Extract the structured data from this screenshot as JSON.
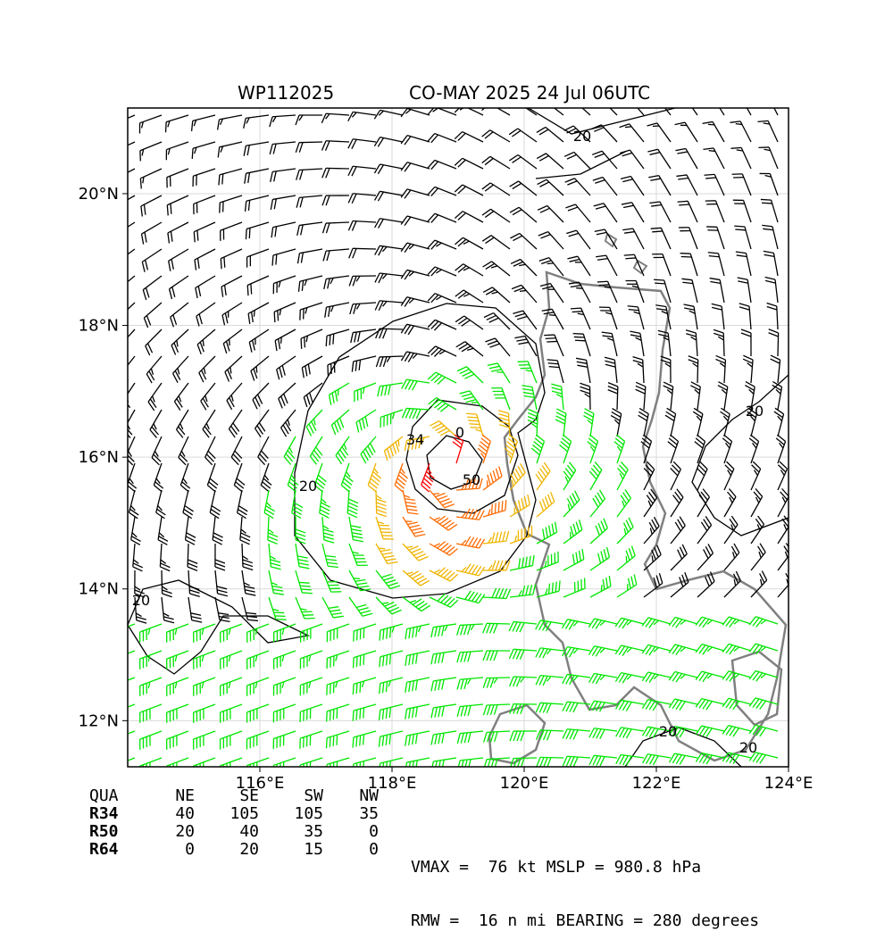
{
  "header": {
    "storm_id": "WP112025",
    "title": "CO-MAY 2025 24 Jul 06UTC"
  },
  "map": {
    "lon_min": 114.0,
    "lon_max": 124.0,
    "lat_min": 11.3,
    "lat_max": 21.3,
    "storm_center": {
      "lon": 118.8,
      "lat": 15.9
    },
    "lon_labels": [
      "116°E",
      "118°E",
      "120°E",
      "122°E",
      "124°E"
    ],
    "lat_labels": [
      "12°N",
      "14°N",
      "16°N",
      "18°N",
      "20°N"
    ],
    "contour_labels": [
      "20",
      "20",
      "20",
      "20",
      "20",
      "20",
      "34",
      "50",
      "0"
    ],
    "colors": {
      "under_34": "#000000",
      "gale_34": "#00e600",
      "storm_50": "#f0b400",
      "hurricane_64": "#ff6a00",
      "core": "#ff0000",
      "coastline": "#808080",
      "grid": "#d9d9d9"
    }
  },
  "wind_radii": {
    "headers": [
      "QUA",
      "NE",
      "SE",
      "SW",
      "NW"
    ],
    "rows": [
      {
        "label": "R34",
        "values": [
          "40",
          "105",
          "105",
          "35"
        ]
      },
      {
        "label": "R50",
        "values": [
          "20",
          "40",
          "35",
          "0"
        ]
      },
      {
        "label": "R64",
        "values": [
          "0",
          "20",
          "15",
          "0"
        ]
      }
    ]
  },
  "stats": {
    "line1": "VMAX =  76 kt MSLP = 980.8 hPa",
    "line2": "RMW =  16 n mi BEARING = 280 degrees"
  }
}
